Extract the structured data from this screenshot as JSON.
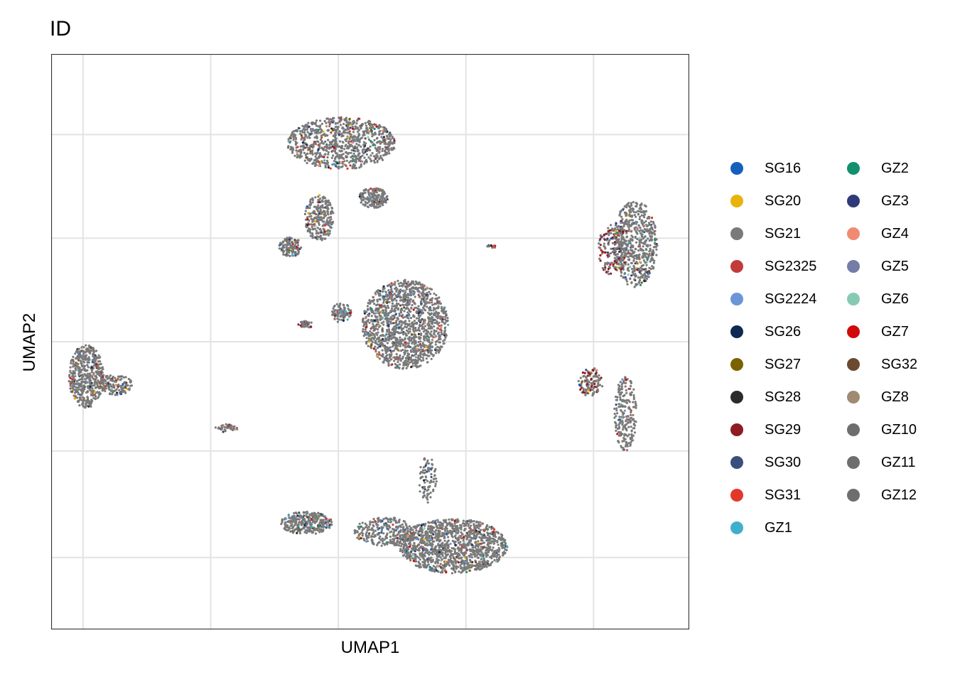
{
  "chart_data": {
    "type": "scatter",
    "title": "ID",
    "xlabel": "UMAP1",
    "ylabel": "UMAP2",
    "grid": true,
    "legend_placement": "right",
    "legend_columns": 2,
    "axis_tick_labels": "hidden",
    "xlim": [
      -10,
      10
    ],
    "ylim": [
      -10,
      10
    ],
    "series": [
      {
        "name": "SG16",
        "color": "#1560BD"
      },
      {
        "name": "SG20",
        "color": "#E8B30C"
      },
      {
        "name": "SG21",
        "color": "#7A7A7A"
      },
      {
        "name": "SG2325",
        "color": "#C23B3B"
      },
      {
        "name": "SG2224",
        "color": "#6A96D8"
      },
      {
        "name": "SG26",
        "color": "#0E2A52"
      },
      {
        "name": "SG27",
        "color": "#7A6200"
      },
      {
        "name": "SG28",
        "color": "#2B2B2B"
      },
      {
        "name": "SG29",
        "color": "#8E1C22"
      },
      {
        "name": "SG30",
        "color": "#3A507C"
      },
      {
        "name": "SG31",
        "color": "#E2382B"
      },
      {
        "name": "GZ1",
        "color": "#3FB0CC"
      },
      {
        "name": "GZ2",
        "color": "#12906E"
      },
      {
        "name": "GZ3",
        "color": "#2E3B78"
      },
      {
        "name": "GZ4",
        "color": "#F08B72"
      },
      {
        "name": "GZ5",
        "color": "#737DA8"
      },
      {
        "name": "GZ6",
        "color": "#86CAB3"
      },
      {
        "name": "GZ7",
        "color": "#D10A0A"
      },
      {
        "name": "SG32",
        "color": "#6B4A30"
      },
      {
        "name": "GZ8",
        "color": "#A08A72"
      },
      {
        "name": "GZ10",
        "color": "#6E6E6E"
      },
      {
        "name": "GZ11",
        "color": "#6E6E6E"
      },
      {
        "name": "GZ12",
        "color": "#6E6E6E"
      }
    ],
    "clusters": [
      {
        "cx": -0.9,
        "cy": 6.9,
        "rx": 1.7,
        "ry": 0.9,
        "n": 900,
        "bias": 2
      },
      {
        "cx": -1.6,
        "cy": 4.3,
        "rx": 0.45,
        "ry": 0.8,
        "n": 260,
        "bias": 2
      },
      {
        "cx": -2.5,
        "cy": 3.3,
        "rx": 0.35,
        "ry": 0.35,
        "n": 120,
        "bias": 2
      },
      {
        "cx": 0.1,
        "cy": 5.0,
        "rx": 0.45,
        "ry": 0.35,
        "n": 180,
        "bias": 2
      },
      {
        "cx": 1.1,
        "cy": 0.6,
        "rx": 1.35,
        "ry": 1.55,
        "n": 1400,
        "bias": 2
      },
      {
        "cx": -0.9,
        "cy": 1.0,
        "rx": 0.3,
        "ry": 0.35,
        "n": 90,
        "bias": 0
      },
      {
        "cx": -2.0,
        "cy": 0.6,
        "rx": 0.25,
        "ry": 0.12,
        "n": 40,
        "bias": 8
      },
      {
        "cx": 2.6,
        "cy": -7.1,
        "rx": 1.7,
        "ry": 0.95,
        "n": 1300,
        "bias": 2
      },
      {
        "cx": -2.0,
        "cy": -6.3,
        "rx": 0.8,
        "ry": 0.4,
        "n": 320,
        "bias": 0
      },
      {
        "cx": 0.5,
        "cy": -6.6,
        "rx": 1.0,
        "ry": 0.5,
        "n": 280,
        "bias": 2
      },
      {
        "cx": 1.8,
        "cy": -4.8,
        "rx": 0.3,
        "ry": 0.8,
        "n": 90,
        "bias": 2
      },
      {
        "cx": -8.9,
        "cy": -1.2,
        "rx": 0.55,
        "ry": 1.1,
        "n": 520,
        "bias": 2
      },
      {
        "cx": -8.0,
        "cy": -1.5,
        "rx": 0.55,
        "ry": 0.35,
        "n": 140,
        "bias": 0
      },
      {
        "cx": 8.3,
        "cy": 3.4,
        "rx": 0.7,
        "ry": 1.5,
        "n": 620,
        "bias": 2
      },
      {
        "cx": 7.6,
        "cy": 3.2,
        "rx": 0.45,
        "ry": 0.9,
        "n": 160,
        "bias": 8
      },
      {
        "cx": 8.0,
        "cy": -2.5,
        "rx": 0.35,
        "ry": 1.3,
        "n": 220,
        "bias": 2
      },
      {
        "cx": 6.9,
        "cy": -1.4,
        "rx": 0.4,
        "ry": 0.5,
        "n": 120,
        "bias": 8
      },
      {
        "cx": 3.8,
        "cy": 3.3,
        "rx": 0.15,
        "ry": 0.06,
        "n": 15,
        "bias": 5
      },
      {
        "cx": -4.5,
        "cy": -3.0,
        "rx": 0.35,
        "ry": 0.15,
        "n": 40,
        "bias": 0
      }
    ]
  }
}
